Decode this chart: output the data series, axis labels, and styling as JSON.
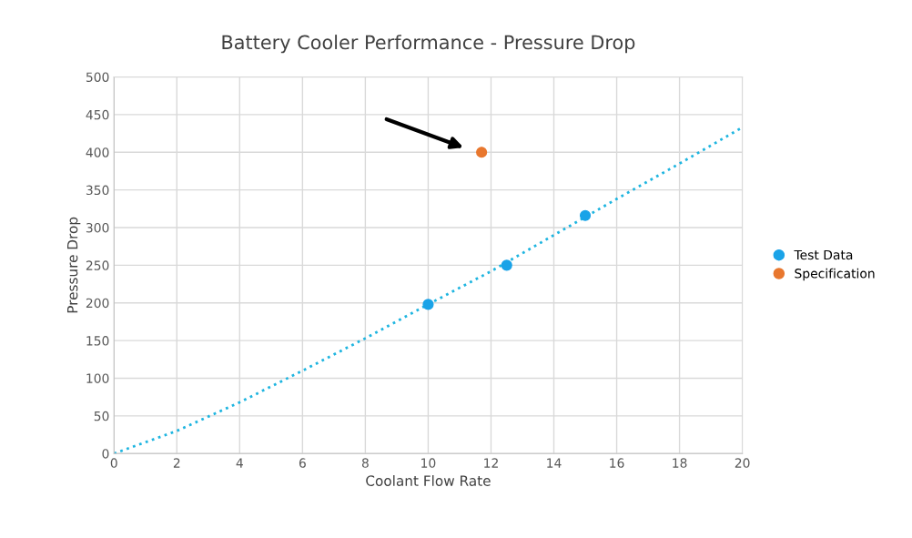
{
  "chart_data": {
    "type": "scatter",
    "title": "Battery Cooler Performance - Pressure Drop",
    "xlabel": "Coolant Flow Rate",
    "ylabel": "Pressure Drop",
    "series": [
      {
        "type": "line",
        "line_style": "dotted",
        "marker": "none",
        "color": "#1fb5e0",
        "x": [
          0,
          2,
          4,
          6,
          8,
          10,
          12,
          14,
          16,
          18,
          20
        ],
        "values": [
          0,
          30,
          68,
          110,
          153,
          198,
          242,
          290,
          338,
          385,
          433
        ]
      },
      {
        "name": "Test Data",
        "color": "#1aa3e8",
        "x": [
          10,
          12.5,
          15
        ],
        "values": [
          198,
          250,
          316
        ]
      },
      {
        "name": "Specification",
        "color": "#e8772e",
        "x": [
          11.7
        ],
        "values": [
          400
        ]
      }
    ],
    "xlim": [
      0,
      20
    ],
    "xticks": [
      0,
      2,
      4,
      6,
      8,
      10,
      12,
      14,
      16,
      18,
      20
    ],
    "ylim": [
      0,
      500
    ],
    "yticks": [
      0,
      50,
      100,
      150,
      200,
      250,
      300,
      350,
      400,
      450,
      500
    ],
    "grid": true,
    "legend": "right",
    "marker": "circle"
  }
}
